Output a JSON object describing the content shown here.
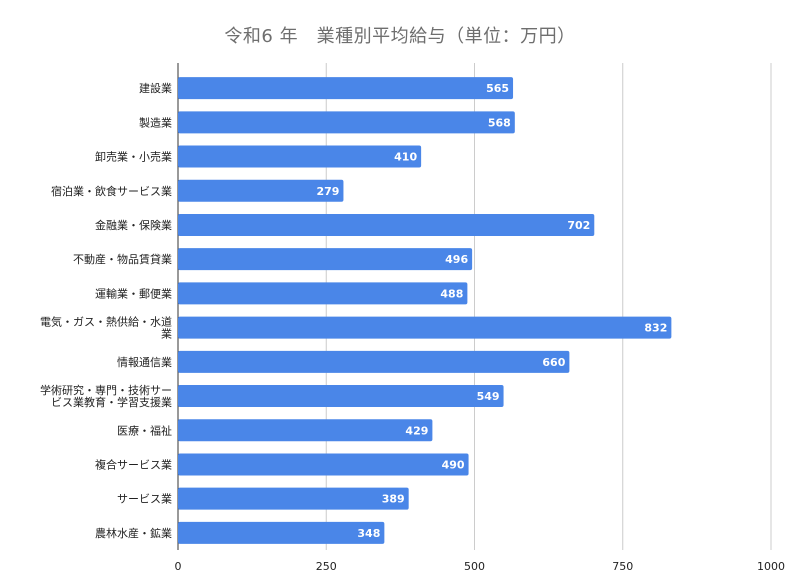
{
  "chart_data": {
    "type": "bar",
    "orientation": "horizontal",
    "title": "令和6 年　業種別平均給与（単位：万円）",
    "categories": [
      [
        "建設業"
      ],
      [
        "製造業"
      ],
      [
        "卸売業・小売業"
      ],
      [
        "宿泊業・飲食サービス業"
      ],
      [
        "金融業・保険業"
      ],
      [
        "不動産・物品賃貸業"
      ],
      [
        "運輸業・郵便業"
      ],
      [
        "電気・ガス・熱供給・水道",
        "業"
      ],
      [
        "情報通信業"
      ],
      [
        "学術研究・専門・技術サー",
        "ビス業教育・学習支援業"
      ],
      [
        "医療・福祉"
      ],
      [
        "複合サービス業"
      ],
      [
        "サービス業"
      ],
      [
        "農林水産・鉱業"
      ]
    ],
    "values": [
      565,
      568,
      410,
      279,
      702,
      496,
      488,
      832,
      660,
      549,
      429,
      490,
      389,
      348
    ],
    "xlim": [
      0,
      1000
    ],
    "xticks": [
      0,
      250,
      500,
      750,
      1000
    ],
    "grid": true,
    "data_labels": true,
    "bar_color": "#4a86e8",
    "grid_color": "#cccccc"
  }
}
